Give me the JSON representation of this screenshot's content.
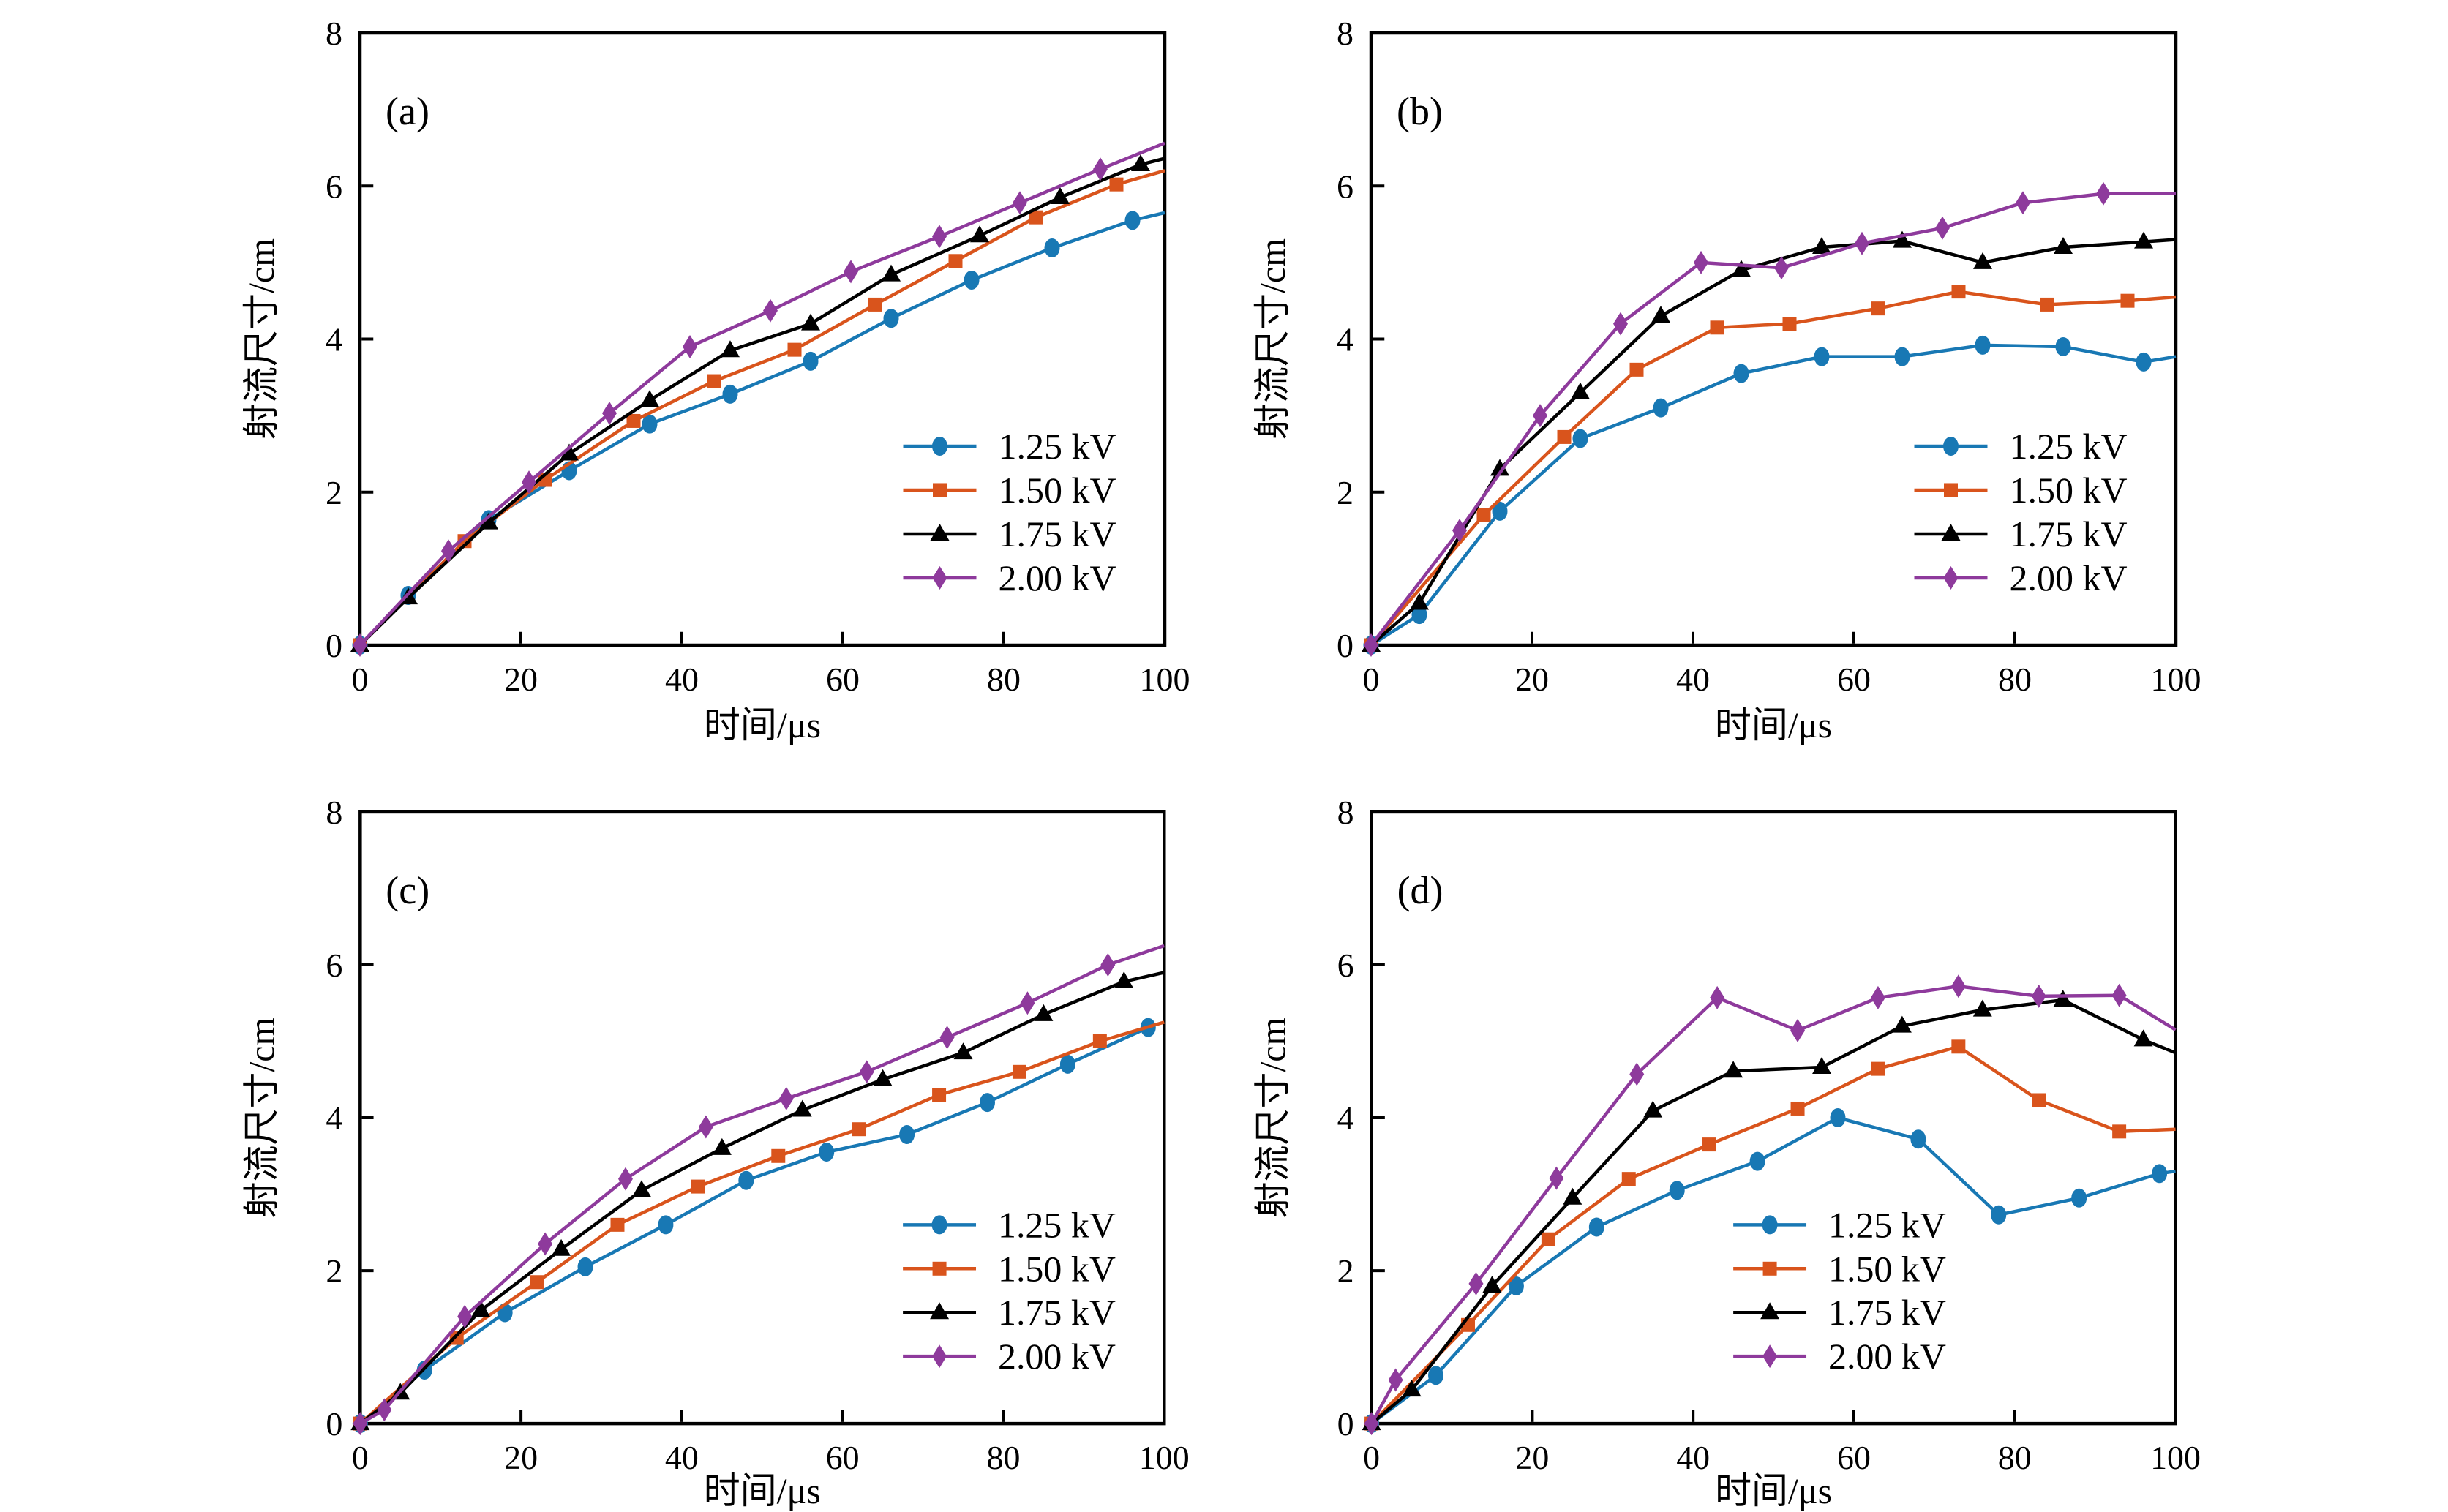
{
  "figure": {
    "background": "#ffffff",
    "text_color": "#000000",
    "xlabel": "时间/μs",
    "ylabel": "射流尺寸/cm",
    "legend_labels": [
      "1.25 kV",
      "1.50 kV",
      "1.75 kV",
      "2.00 kV"
    ],
    "series_colors": {
      "1.25 kV": "#1878b4",
      "1.50 kV": "#d9541c",
      "1.75 kV": "#000000",
      "2.00 kV": "#8e3a9c"
    }
  },
  "chart_data": [
    {
      "type": "line",
      "panel_label": "(a)",
      "xlabel": "时间/μs",
      "ylabel": "射流尺寸/cm",
      "xlim": [
        0,
        100
      ],
      "ylim": [
        0,
        8
      ],
      "x_ticks": [
        0,
        20,
        40,
        60,
        80,
        100
      ],
      "y_ticks": [
        0,
        2,
        4,
        6,
        8
      ],
      "grid": false,
      "legend_position": "lower-right",
      "series": [
        {
          "name": "1.25 kV",
          "color": "#1878b4",
          "marker": "circle",
          "x": [
            0,
            6,
            16,
            26,
            36,
            46,
            56,
            66,
            76,
            86,
            96
          ],
          "y": [
            0,
            0.65,
            1.64,
            2.28,
            2.89,
            3.28,
            3.71,
            4.27,
            4.77,
            5.19,
            5.55
          ],
          "line_end": [
            100,
            5.65
          ]
        },
        {
          "name": "1.50 kV",
          "color": "#d9541c",
          "marker": "square",
          "x": [
            0,
            13,
            23,
            34,
            44,
            54,
            64,
            74,
            84,
            94
          ],
          "y": [
            0,
            1.36,
            2.16,
            2.93,
            3.45,
            3.86,
            4.45,
            5.02,
            5.59,
            6.02
          ],
          "line_end": [
            100,
            6.2
          ]
        },
        {
          "name": "1.75 kV",
          "color": "#000000",
          "marker": "triangle",
          "x": [
            0,
            6,
            16,
            26,
            36,
            46,
            56,
            66,
            77,
            87,
            97
          ],
          "y": [
            0,
            0.62,
            1.6,
            2.5,
            3.2,
            3.85,
            4.2,
            4.84,
            5.35,
            5.85,
            6.28
          ],
          "line_end": [
            100,
            6.36
          ]
        },
        {
          "name": "2.00 kV",
          "color": "#8e3a9c",
          "marker": "diamond",
          "x": [
            0,
            11,
            21,
            31,
            41,
            51,
            61,
            72,
            82,
            92
          ],
          "y": [
            0,
            1.23,
            2.13,
            3.03,
            3.9,
            4.37,
            4.88,
            5.34,
            5.78,
            6.22
          ],
          "line_end": [
            100,
            6.56
          ]
        }
      ]
    },
    {
      "type": "line",
      "panel_label": "(b)",
      "xlabel": "时间/μs",
      "ylabel": "射流尺寸/cm",
      "xlim": [
        0,
        100
      ],
      "ylim": [
        0,
        8
      ],
      "x_ticks": [
        0,
        20,
        40,
        60,
        80,
        100
      ],
      "y_ticks": [
        0,
        2,
        4,
        6,
        8
      ],
      "grid": false,
      "legend_position": "lower-right",
      "series": [
        {
          "name": "1.25 kV",
          "color": "#1878b4",
          "marker": "circle",
          "x": [
            0,
            6,
            16,
            26,
            36,
            46,
            56,
            66,
            76,
            86,
            96
          ],
          "y": [
            0,
            0.4,
            1.75,
            2.7,
            3.1,
            3.55,
            3.77,
            3.77,
            3.92,
            3.9,
            3.7
          ],
          "line_end": [
            100,
            3.77
          ]
        },
        {
          "name": "1.50 kV",
          "color": "#d9541c",
          "marker": "square",
          "x": [
            0,
            14,
            24,
            33,
            43,
            52,
            63,
            73,
            84,
            94
          ],
          "y": [
            0,
            1.7,
            2.72,
            3.6,
            4.15,
            4.2,
            4.4,
            4.62,
            4.45,
            4.5
          ],
          "line_end": [
            100,
            4.55
          ]
        },
        {
          "name": "1.75 kV",
          "color": "#000000",
          "marker": "triangle",
          "x": [
            0,
            6,
            16,
            26,
            36,
            46,
            56,
            66,
            76,
            86,
            96
          ],
          "y": [
            0,
            0.55,
            2.3,
            3.3,
            4.3,
            4.9,
            5.2,
            5.28,
            5.0,
            5.2,
            5.27
          ],
          "line_end": [
            100,
            5.3
          ]
        },
        {
          "name": "2.00 kV",
          "color": "#8e3a9c",
          "marker": "diamond",
          "x": [
            0,
            11,
            21,
            31,
            41,
            51,
            61,
            71,
            81,
            91
          ],
          "y": [
            0,
            1.5,
            3.0,
            4.2,
            5.0,
            4.93,
            5.25,
            5.45,
            5.78,
            5.9
          ],
          "line_end": [
            100,
            5.9
          ]
        }
      ]
    },
    {
      "type": "line",
      "panel_label": "(c)",
      "xlabel": "时间/μs",
      "ylabel": "射流尺寸/cm",
      "xlim": [
        0,
        100
      ],
      "ylim": [
        0,
        8
      ],
      "x_ticks": [
        0,
        20,
        40,
        60,
        80,
        100
      ],
      "y_ticks": [
        0,
        2,
        4,
        6,
        8
      ],
      "grid": false,
      "legend_position": "lower-right",
      "series": [
        {
          "name": "1.25 kV",
          "color": "#1878b4",
          "marker": "circle",
          "x": [
            0,
            8,
            18,
            28,
            38,
            48,
            58,
            68,
            78,
            88,
            98
          ],
          "y": [
            0,
            0.7,
            1.45,
            2.05,
            2.6,
            3.18,
            3.55,
            3.78,
            4.2,
            4.7,
            5.18
          ]
        },
        {
          "name": "1.50 kV",
          "color": "#d9541c",
          "marker": "square",
          "x": [
            0,
            12,
            22,
            32,
            42,
            52,
            62,
            72,
            82,
            92
          ],
          "y": [
            0,
            1.12,
            1.85,
            2.6,
            3.1,
            3.5,
            3.85,
            4.3,
            4.6,
            5.0
          ],
          "line_end": [
            100,
            5.25
          ]
        },
        {
          "name": "1.75 kV",
          "color": "#000000",
          "marker": "triangle",
          "x": [
            0,
            5,
            15,
            25,
            35,
            45,
            55,
            65,
            75,
            85,
            95
          ],
          "y": [
            0,
            0.4,
            1.48,
            2.28,
            3.05,
            3.6,
            4.1,
            4.5,
            4.85,
            5.35,
            5.78
          ],
          "line_end": [
            100,
            5.9
          ]
        },
        {
          "name": "2.00 kV",
          "color": "#8e3a9c",
          "marker": "diamond",
          "x": [
            0,
            3,
            13,
            23,
            33,
            43,
            53,
            63,
            73,
            83,
            93
          ],
          "y": [
            0,
            0.18,
            1.4,
            2.35,
            3.2,
            3.88,
            4.25,
            4.6,
            5.05,
            5.5,
            6.0
          ],
          "line_end": [
            100,
            6.25
          ]
        }
      ]
    },
    {
      "type": "line",
      "panel_label": "(d)",
      "xlabel": "时间/μs",
      "ylabel": "射流尺寸/cm",
      "xlim": [
        0,
        100
      ],
      "ylim": [
        0,
        8
      ],
      "x_ticks": [
        0,
        20,
        40,
        60,
        80,
        100
      ],
      "y_ticks": [
        0,
        2,
        4,
        6,
        8
      ],
      "grid": false,
      "legend_position": "lower-center",
      "series": [
        {
          "name": "1.25 kV",
          "color": "#1878b4",
          "marker": "circle",
          "x": [
            0,
            8,
            18,
            28,
            38,
            48,
            58,
            68,
            78,
            88,
            98
          ],
          "y": [
            0,
            0.63,
            1.8,
            2.57,
            3.05,
            3.43,
            4.0,
            3.72,
            2.73,
            2.95,
            3.27
          ],
          "line_end": [
            100,
            3.3
          ]
        },
        {
          "name": "1.50 kV",
          "color": "#d9541c",
          "marker": "square",
          "x": [
            0,
            12,
            22,
            32,
            42,
            53,
            63,
            73,
            83,
            93
          ],
          "y": [
            0,
            1.29,
            2.41,
            3.2,
            3.65,
            4.12,
            4.64,
            4.93,
            4.23,
            3.82
          ],
          "line_end": [
            100,
            3.85
          ]
        },
        {
          "name": "1.75 kV",
          "color": "#000000",
          "marker": "triangle",
          "x": [
            0,
            5,
            15,
            25,
            35,
            45,
            56,
            66,
            76,
            86,
            96
          ],
          "y": [
            0,
            0.44,
            1.8,
            2.95,
            4.09,
            4.61,
            4.66,
            5.2,
            5.41,
            5.54,
            5.02
          ],
          "line_end": [
            100,
            4.85
          ]
        },
        {
          "name": "2.00 kV",
          "color": "#8e3a9c",
          "marker": "diamond",
          "x": [
            0,
            3,
            13,
            23,
            33,
            43,
            53,
            63,
            73,
            83,
            93
          ],
          "y": [
            0,
            0.57,
            1.83,
            3.21,
            4.57,
            5.57,
            5.14,
            5.57,
            5.72,
            5.59,
            5.6
          ],
          "line_end": [
            100,
            5.15
          ]
        }
      ]
    }
  ]
}
